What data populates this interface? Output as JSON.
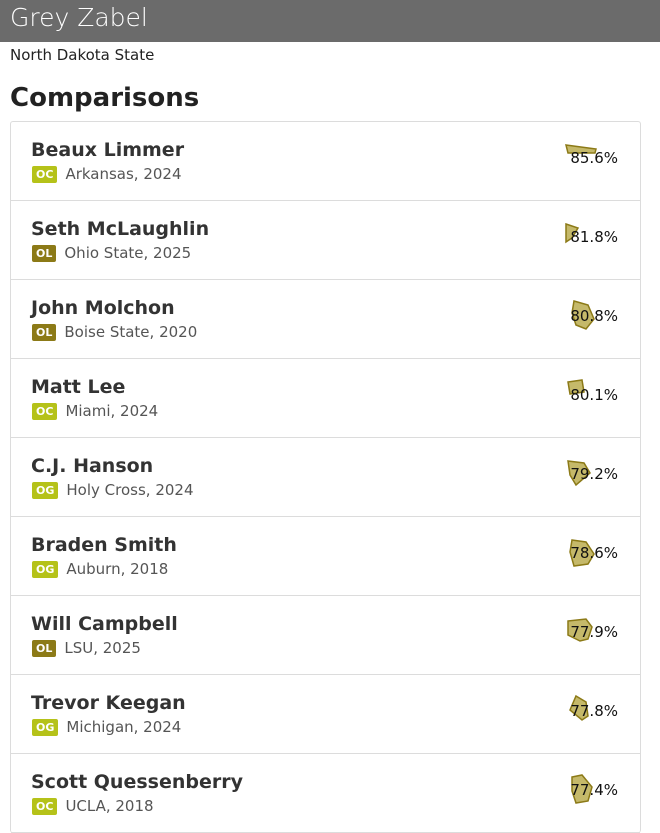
{
  "header": {
    "title": "Grey Zabel",
    "school": "North Dakota State"
  },
  "section": {
    "title": "Comparisons"
  },
  "colors": {
    "lime_badge": "#b5c219",
    "dark_badge": "#8c7a17",
    "shape_fill": "#c5b96a",
    "shape_stroke": "#8c7a17"
  },
  "comparisons": [
    {
      "name": "Beaux Limmer",
      "position": "OC",
      "meta": "Arkansas, 2024",
      "score": "85.6%",
      "badge_tone": "lime"
    },
    {
      "name": "Seth McLaughlin",
      "position": "OL",
      "meta": "Ohio State, 2025",
      "score": "81.8%",
      "badge_tone": "dark"
    },
    {
      "name": "John Molchon",
      "position": "OL",
      "meta": "Boise State, 2020",
      "score": "80.8%",
      "badge_tone": "dark"
    },
    {
      "name": "Matt Lee",
      "position": "OC",
      "meta": "Miami, 2024",
      "score": "80.1%",
      "badge_tone": "lime"
    },
    {
      "name": "C.J. Hanson",
      "position": "OG",
      "meta": "Holy Cross, 2024",
      "score": "79.2%",
      "badge_tone": "lime"
    },
    {
      "name": "Braden Smith",
      "position": "OG",
      "meta": "Auburn, 2018",
      "score": "78.6%",
      "badge_tone": "lime"
    },
    {
      "name": "Will Campbell",
      "position": "OL",
      "meta": "LSU, 2025",
      "score": "77.9%",
      "badge_tone": "dark"
    },
    {
      "name": "Trevor Keegan",
      "position": "OG",
      "meta": "Michigan, 2024",
      "score": "77.8%",
      "badge_tone": "lime"
    },
    {
      "name": "Scott Quessenberry",
      "position": "OC",
      "meta": "UCLA, 2018",
      "score": "77.4%",
      "badge_tone": "lime"
    }
  ]
}
